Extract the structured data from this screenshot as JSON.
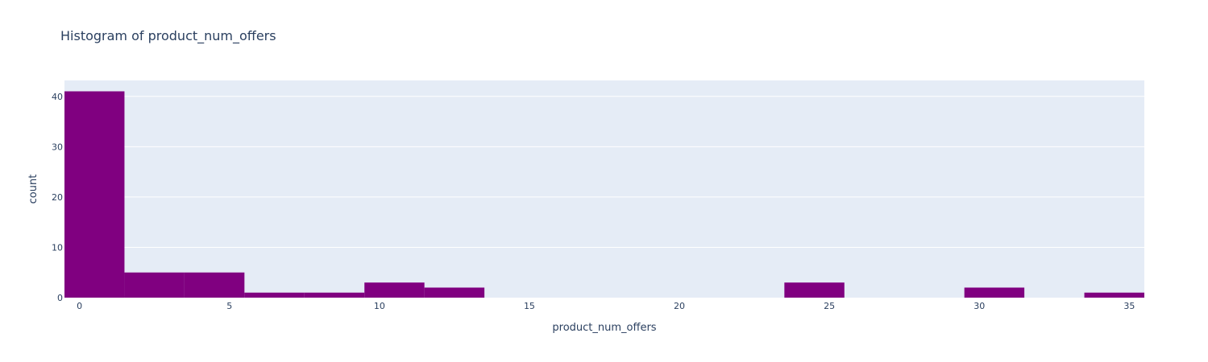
{
  "chart_data": {
    "type": "bar",
    "title": "Histogram of product_num_offers",
    "xlabel": "product_num_offers",
    "ylabel": "count",
    "bin_size": 2,
    "bins": [
      {
        "start": -0.5,
        "end": 1.5,
        "count": 41
      },
      {
        "start": 1.5,
        "end": 3.5,
        "count": 5
      },
      {
        "start": 3.5,
        "end": 5.5,
        "count": 5
      },
      {
        "start": 5.5,
        "end": 7.5,
        "count": 1
      },
      {
        "start": 7.5,
        "end": 9.5,
        "count": 1
      },
      {
        "start": 9.5,
        "end": 11.5,
        "count": 3
      },
      {
        "start": 11.5,
        "end": 13.5,
        "count": 2
      },
      {
        "start": 13.5,
        "end": 15.5,
        "count": 0
      },
      {
        "start": 15.5,
        "end": 17.5,
        "count": 0
      },
      {
        "start": 17.5,
        "end": 19.5,
        "count": 0
      },
      {
        "start": 19.5,
        "end": 21.5,
        "count": 0
      },
      {
        "start": 21.5,
        "end": 23.5,
        "count": 0
      },
      {
        "start": 23.5,
        "end": 25.5,
        "count": 3
      },
      {
        "start": 25.5,
        "end": 27.5,
        "count": 0
      },
      {
        "start": 27.5,
        "end": 29.5,
        "count": 0
      },
      {
        "start": 29.5,
        "end": 31.5,
        "count": 2
      },
      {
        "start": 31.5,
        "end": 33.5,
        "count": 0
      },
      {
        "start": 33.5,
        "end": 35.5,
        "count": 1
      }
    ],
    "xlim": [
      -0.5,
      35.5
    ],
    "ylim": [
      0,
      43.16
    ],
    "x_ticks": [
      0,
      5,
      10,
      15,
      20,
      25,
      30,
      35
    ],
    "y_ticks": [
      0,
      10,
      20,
      30,
      40
    ],
    "bar_color": "#800080",
    "plot_bg": "#E5ECF6",
    "grid": true,
    "grid_color": "#ffffff",
    "legend": false
  }
}
